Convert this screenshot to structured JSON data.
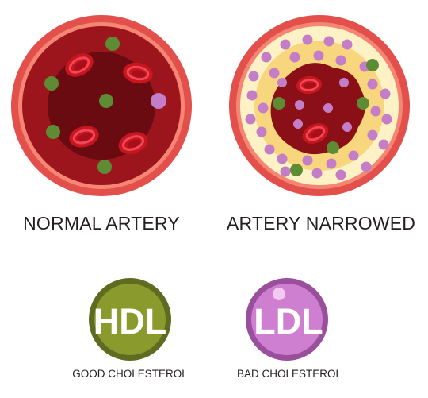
{
  "diagram": {
    "normal_artery": {
      "label": "NORMAL ARTERY",
      "colors": {
        "outer_wall": "#e4514d",
        "wall_highlight": "#f58a78",
        "blood": "#8a0f16",
        "lumen_core": "#5e0a10",
        "red_cell": "#d31e2a",
        "hdl_dot": "#5d8c35",
        "ldl_dot": "#c47ec8"
      },
      "icons": [
        "red-blood-cell",
        "hdl-particle",
        "ldl-particle"
      ]
    },
    "narrowed_artery": {
      "label": "ARTERY NARROWED",
      "colors": {
        "outer_wall": "#e4514d",
        "plaque": "#f7d67e",
        "plaque_light": "#fdf3c8",
        "blood": "#8a0f16",
        "ldl_dot": "#c47ec8",
        "hdl_dot": "#5d8c35"
      },
      "icons": [
        "red-blood-cell",
        "ldl-particle",
        "hdl-particle",
        "plaque-buildup"
      ]
    },
    "hdl": {
      "badge_text": "HDL",
      "caption": "GOOD CHOLESTEROL",
      "colors": {
        "fill": "#8a9a2c",
        "ring": "#5f6b20"
      }
    },
    "ldl": {
      "badge_text": "LDL",
      "caption": "BAD CHOLESTEROL",
      "colors": {
        "fill": "#cf7fcf",
        "ring": "#9a4f9c",
        "highlight": "#f3c9f2"
      }
    }
  }
}
